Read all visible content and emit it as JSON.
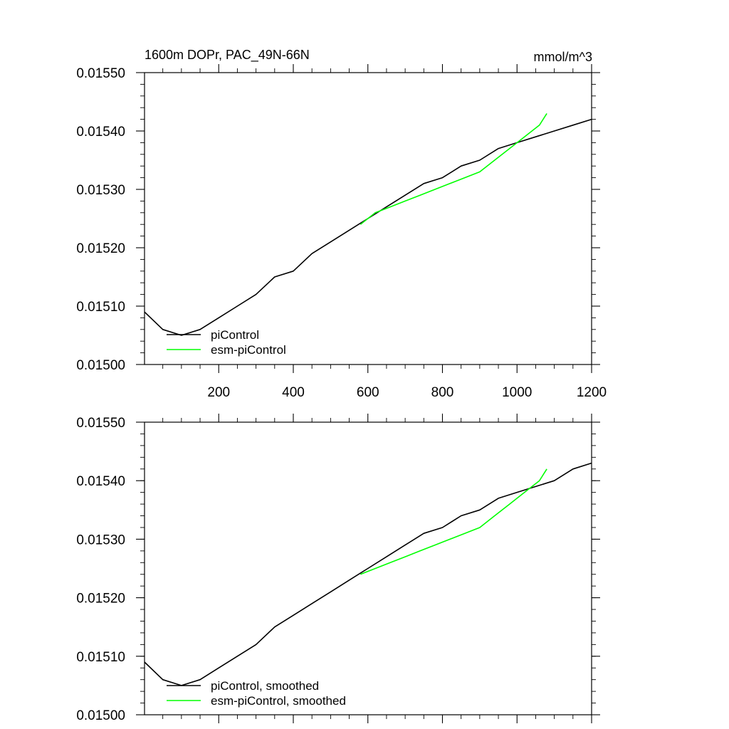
{
  "chart_data": [
    {
      "type": "line",
      "title": "1600m DOPr, PAC_49N-66N",
      "units": "mmol/m^3",
      "xlim": [
        1,
        1200
      ],
      "ylim": [
        0.015,
        0.0155
      ],
      "x_ticks": [
        "200",
        "400",
        "600",
        "800",
        "1000",
        "1200"
      ],
      "y_ticks": [
        "0.01500",
        "0.01510",
        "0.01520",
        "0.01530",
        "0.01540",
        "0.01550"
      ],
      "legend_position": "bottom-left",
      "series": [
        {
          "name": "piControl",
          "color": "#000000",
          "x": [
            1,
            50,
            100,
            150,
            200,
            250,
            300,
            350,
            400,
            450,
            500,
            550,
            600,
            650,
            700,
            750,
            800,
            850,
            900,
            950,
            1000,
            1050,
            1100,
            1150,
            1200
          ],
          "values": [
            0.01509,
            0.01506,
            0.01505,
            0.01506,
            0.01508,
            0.0151,
            0.01512,
            0.01515,
            0.01516,
            0.01519,
            0.01521,
            0.01523,
            0.01525,
            0.01527,
            0.01529,
            0.01531,
            0.01532,
            0.01534,
            0.01535,
            0.01537,
            0.01538,
            0.01539,
            0.0154,
            0.01541,
            0.01542
          ]
        },
        {
          "name": "esm-piControl",
          "color": "#00ff00",
          "x": [
            580,
            620,
            660,
            700,
            740,
            780,
            820,
            860,
            900,
            940,
            980,
            1020,
            1060,
            1080
          ],
          "values": [
            0.01524,
            0.01526,
            0.01527,
            0.01528,
            0.01529,
            0.0153,
            0.01531,
            0.01532,
            0.01533,
            0.01535,
            0.01537,
            0.01539,
            0.01541,
            0.01543
          ]
        }
      ]
    },
    {
      "type": "line",
      "xlim": [
        1,
        1200
      ],
      "ylim": [
        0.015,
        0.0155
      ],
      "y_ticks": [
        "0.01500",
        "0.01510",
        "0.01520",
        "0.01530",
        "0.01540",
        "0.01550"
      ],
      "legend_position": "bottom-left",
      "series": [
        {
          "name": "piControl, smoothed",
          "color": "#000000",
          "x": [
            1,
            50,
            100,
            150,
            200,
            250,
            300,
            350,
            400,
            450,
            500,
            550,
            600,
            650,
            700,
            750,
            800,
            850,
            900,
            950,
            1000,
            1050,
            1100,
            1150,
            1200
          ],
          "values": [
            0.01509,
            0.01506,
            0.01505,
            0.01506,
            0.01508,
            0.0151,
            0.01512,
            0.01515,
            0.01517,
            0.01519,
            0.01521,
            0.01523,
            0.01525,
            0.01527,
            0.01529,
            0.01531,
            0.01532,
            0.01534,
            0.01535,
            0.01537,
            0.01538,
            0.01539,
            0.0154,
            0.01542,
            0.01543
          ]
        },
        {
          "name": "esm-piControl, smoothed",
          "color": "#00ff00",
          "x": [
            580,
            620,
            660,
            700,
            740,
            780,
            820,
            860,
            900,
            940,
            980,
            1020,
            1060,
            1080
          ],
          "values": [
            0.01524,
            0.01525,
            0.01526,
            0.01527,
            0.01528,
            0.01529,
            0.0153,
            0.01531,
            0.01532,
            0.01534,
            0.01536,
            0.01538,
            0.0154,
            0.01542
          ]
        }
      ]
    }
  ]
}
